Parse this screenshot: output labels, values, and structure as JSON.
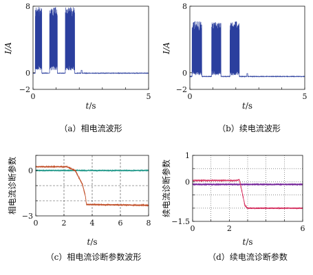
{
  "chart_data": [
    {
      "id": "a",
      "type": "line",
      "caption": "（a）相电流波形",
      "ylabel": "I/A",
      "xlabel_var": "t",
      "xlabel_unit": "/s",
      "xlim": [
        0,
        5
      ],
      "ylim": [
        -2,
        8
      ],
      "xticks": [
        0,
        1,
        2,
        3,
        4,
        5
      ],
      "xtick_labels": [
        "0",
        "",
        "",
        "",
        "",
        "5"
      ],
      "yticks": [
        -2,
        0,
        8
      ],
      "ytick_labels": [
        "−2",
        "0",
        "8"
      ],
      "grid": false,
      "series": [
        {
          "color": "#2b3f9e",
          "bursts": [
            [
              0.1,
              0.38
            ],
            [
              0.72,
              1.05
            ],
            [
              1.4,
              1.8
            ]
          ],
          "burst_high": 7.9,
          "burst_low": 0.3,
          "baseline": -0.05,
          "ripple": 0.05,
          "spike": 0.35,
          "spike_at": 2.1
        }
      ]
    },
    {
      "id": "b",
      "type": "line",
      "caption": "（b）续电流波形",
      "ylabel": "I/A",
      "xlabel_var": "t",
      "xlabel_unit": "/s",
      "xlim": [
        0,
        5
      ],
      "ylim": [
        -2,
        8
      ],
      "xticks": [
        0,
        1,
        2,
        3,
        4,
        5
      ],
      "xtick_labels": [
        "0",
        "",
        "",
        "",
        "",
        "5"
      ],
      "yticks": [
        -2,
        0,
        8
      ],
      "ytick_labels": [
        "−2",
        "0",
        "8"
      ],
      "grid": false,
      "series": [
        {
          "color": "#2b3f9e",
          "bursts": [
            [
              0.1,
              0.52
            ],
            [
              0.95,
              1.35
            ],
            [
              1.75,
              2.15
            ]
          ],
          "burst_high": 6.2,
          "burst_low": -0.3,
          "baseline": -0.45,
          "ripple": 0.05,
          "spike": 0.35,
          "spike_at": 2.5
        }
      ]
    },
    {
      "id": "c",
      "type": "line",
      "caption": "（c）相电流诊断参数波形",
      "ylabel": "相电流诊断参数",
      "xlabel_var": "t",
      "xlabel_unit": "/s",
      "xlim": [
        0,
        8
      ],
      "ylim": [
        -3,
        1
      ],
      "xticks": [
        0,
        2,
        4,
        6,
        8
      ],
      "xtick_labels": [
        "0",
        "2",
        "4",
        "6",
        "8"
      ],
      "yticks": [
        -3,
        -2,
        -1,
        0,
        1
      ],
      "ytick_labels": [
        "−3",
        "",
        "",
        "0",
        ""
      ],
      "grid": true,
      "grid_style": "dashed",
      "series": [
        {
          "color": "#2a9d8f",
          "points": [
            [
              0,
              0
            ],
            [
              8,
              0
            ]
          ],
          "noise": 0.06
        },
        {
          "color": "#c04a22",
          "points": [
            [
              0,
              0.25
            ],
            [
              2.2,
              0.25
            ],
            [
              2.8,
              0
            ],
            [
              3.3,
              -0.9
            ],
            [
              3.5,
              -1.6
            ],
            [
              3.6,
              -2.25
            ],
            [
              8,
              -2.3
            ]
          ],
          "noise": 0.05
        }
      ]
    },
    {
      "id": "d",
      "type": "line",
      "caption": "（d）续电流诊断参数",
      "ylabel": "续电流诊断参数",
      "xlabel_var": "t",
      "xlabel_unit": "/s",
      "xlim": [
        0,
        6
      ],
      "ylim": [
        -1.5,
        1
      ],
      "xticks": [
        0,
        1,
        2,
        3,
        4,
        5,
        6
      ],
      "xtick_labels": [
        "0",
        "",
        "2",
        "",
        "",
        "",
        "6"
      ],
      "yticks": [
        -1.5,
        -1,
        -0.5,
        0,
        0.5,
        1
      ],
      "ytick_labels": [
        "−1.5",
        "",
        "",
        "0",
        "",
        "1"
      ],
      "grid": true,
      "grid_style": "dotted",
      "series": [
        {
          "color": "#7b2f9e",
          "points": [
            [
              0,
              -0.1
            ],
            [
              6,
              -0.1
            ]
          ],
          "noise": 0.04
        },
        {
          "color": "#d42c5c",
          "points": [
            [
              0,
              0.05
            ],
            [
              2.4,
              0.05
            ],
            [
              2.55,
              0.08
            ],
            [
              2.7,
              -0.4
            ],
            [
              2.85,
              -0.9
            ],
            [
              3.0,
              -1.0
            ],
            [
              6,
              -1.0
            ]
          ],
          "noise": 0.03
        }
      ]
    }
  ]
}
